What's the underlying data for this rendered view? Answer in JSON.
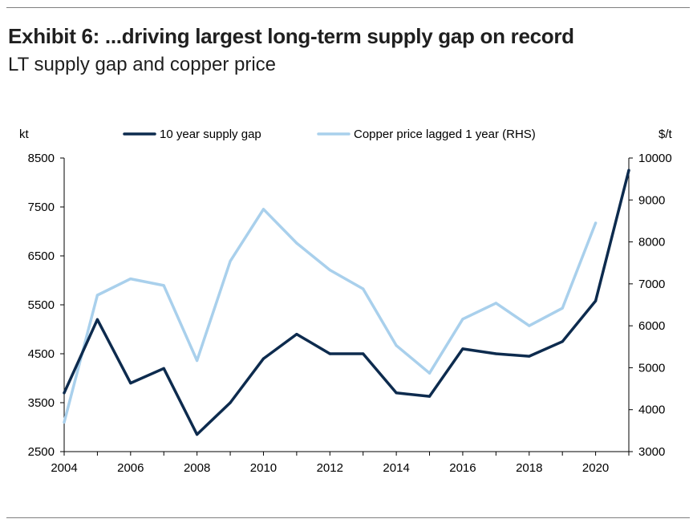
{
  "header": {
    "title": "Exhibit 6: ...driving largest long-term supply gap on record",
    "subtitle": "LT supply gap and copper price"
  },
  "chart_data": {
    "type": "line",
    "title": "Exhibit 6: ...driving largest long-term supply gap on record",
    "subtitle": "LT supply gap and copper price",
    "y_left_unit": "kt",
    "y_right_unit": "$/t",
    "x": [
      2004,
      2005,
      2006,
      2007,
      2008,
      2009,
      2010,
      2011,
      2012,
      2013,
      2014,
      2015,
      2016,
      2017,
      2018,
      2019,
      2020,
      2021
    ],
    "x_ticks": [
      2004,
      2006,
      2008,
      2010,
      2012,
      2014,
      2016,
      2018,
      2020
    ],
    "y_left_ticks": [
      2500,
      3500,
      4500,
      5500,
      6500,
      7500,
      8500
    ],
    "y_right_ticks": [
      3000,
      4000,
      5000,
      6000,
      7000,
      8000,
      9000,
      10000
    ],
    "ylim_left": [
      2500,
      8500
    ],
    "ylim_right": [
      3000,
      10000
    ],
    "xlim": [
      2004,
      2021
    ],
    "grid": false,
    "legend_position": "top",
    "series": [
      {
        "name": "10 year supply gap",
        "axis": "left",
        "color": "#0d2b4e",
        "values": [
          3700,
          5200,
          3900,
          4200,
          2850,
          3500,
          4400,
          4900,
          4500,
          4500,
          3700,
          3630,
          4600,
          4500,
          4450,
          4750,
          5580,
          8250
        ]
      },
      {
        "name": "Copper price lagged 1 year (RHS)",
        "axis": "right",
        "color": "#a9d0ec",
        "values": [
          3700,
          6730,
          7120,
          6960,
          5170,
          7540,
          8780,
          7970,
          7330,
          6880,
          5530,
          4870,
          6160,
          6540,
          6000,
          6420,
          8450,
          null
        ]
      }
    ]
  }
}
